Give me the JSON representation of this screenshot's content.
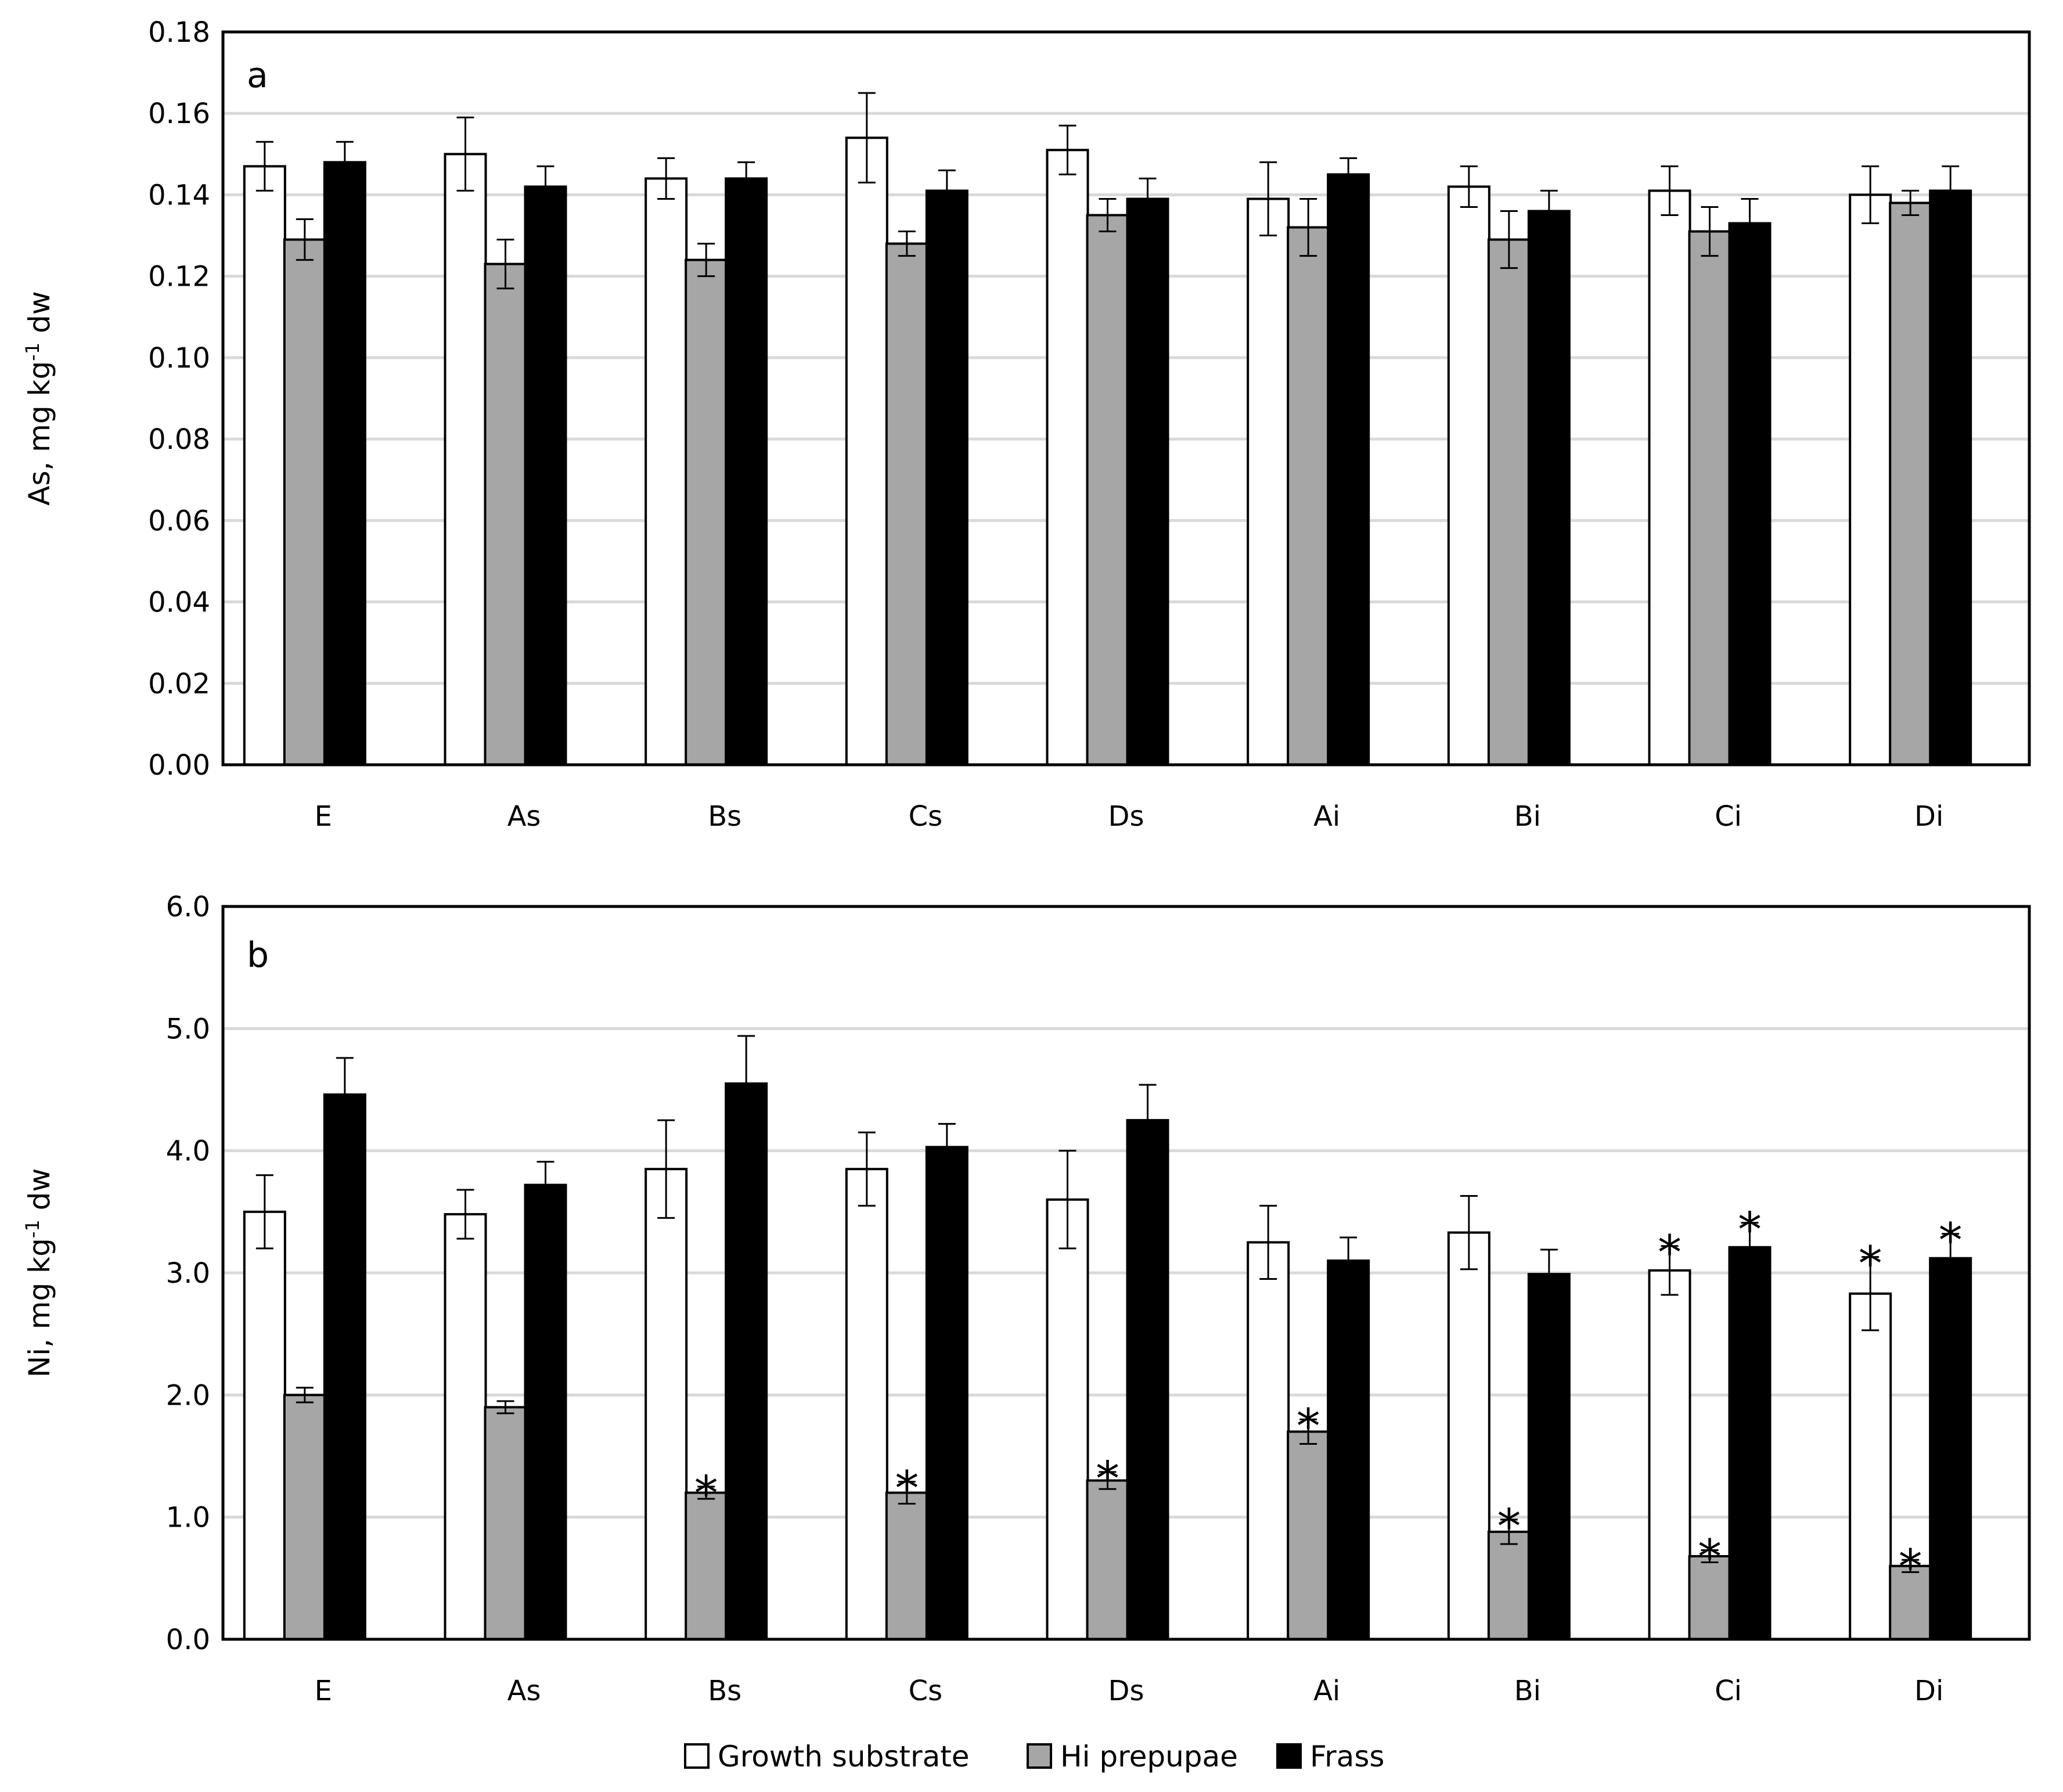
{
  "chart_data": [
    {
      "type": "bar",
      "panel_label": "a",
      "ylabel_main": "As, mg kg",
      "ylabel_sup": "-1",
      "ylabel_tail": " dw",
      "ylim": [
        0,
        0.18
      ],
      "yticks": [
        "0.00",
        "0.02",
        "0.04",
        "0.06",
        "0.08",
        "0.10",
        "0.12",
        "0.14",
        "0.16",
        "0.18"
      ],
      "grid": true,
      "categories": [
        "E",
        "As",
        "Bs",
        "Cs",
        "Ds",
        "Ai",
        "Bi",
        "Ci",
        "Di"
      ],
      "series": [
        {
          "name": "Growth substrate",
          "color": "#ffffff",
          "values": [
            0.147,
            0.15,
            0.144,
            0.154,
            0.151,
            0.139,
            0.142,
            0.141,
            0.14
          ],
          "errors": [
            0.006,
            0.009,
            0.005,
            0.011,
            0.006,
            0.009,
            0.005,
            0.006,
            0.007
          ],
          "stars": [
            false,
            false,
            false,
            false,
            false,
            false,
            false,
            false,
            false
          ]
        },
        {
          "name": "Hi prepupae",
          "color": "#a6a6a6",
          "values": [
            0.129,
            0.123,
            0.124,
            0.128,
            0.135,
            0.132,
            0.129,
            0.131,
            0.138
          ],
          "errors": [
            0.005,
            0.006,
            0.004,
            0.003,
            0.004,
            0.007,
            0.007,
            0.006,
            0.003
          ],
          "stars": [
            false,
            false,
            false,
            false,
            false,
            false,
            false,
            false,
            false
          ]
        },
        {
          "name": "Frass",
          "color": "#000000",
          "values": [
            0.148,
            0.142,
            0.144,
            0.141,
            0.139,
            0.145,
            0.136,
            0.133,
            0.141
          ],
          "errors": [
            0.005,
            0.005,
            0.004,
            0.005,
            0.005,
            0.004,
            0.005,
            0.006,
            0.006
          ],
          "stars": [
            false,
            false,
            false,
            false,
            false,
            false,
            false,
            false,
            false
          ]
        }
      ]
    },
    {
      "type": "bar",
      "panel_label": "b",
      "ylabel_main": "Ni, mg kg",
      "ylabel_sup": "-1",
      "ylabel_tail": " dw",
      "ylim": [
        0,
        6.0
      ],
      "yticks": [
        "0.0",
        "1.0",
        "2.0",
        "3.0",
        "4.0",
        "5.0",
        "6.0"
      ],
      "grid": true,
      "categories": [
        "E",
        "As",
        "Bs",
        "Cs",
        "Ds",
        "Ai",
        "Bi",
        "Ci",
        "Di"
      ],
      "series": [
        {
          "name": "Growth substrate",
          "color": "#ffffff",
          "values": [
            3.5,
            3.48,
            3.85,
            3.85,
            3.6,
            3.25,
            3.33,
            3.02,
            2.83
          ],
          "errors": [
            0.3,
            0.2,
            0.4,
            0.3,
            0.4,
            0.3,
            0.3,
            0.2,
            0.3
          ],
          "stars": [
            false,
            false,
            false,
            false,
            false,
            false,
            false,
            true,
            true
          ]
        },
        {
          "name": "Hi prepupae",
          "color": "#a6a6a6",
          "values": [
            2.0,
            1.9,
            1.2,
            1.2,
            1.3,
            1.7,
            0.88,
            0.68,
            0.6
          ],
          "errors": [
            0.06,
            0.05,
            0.05,
            0.09,
            0.07,
            0.1,
            0.1,
            0.05,
            0.05
          ],
          "stars": [
            false,
            false,
            true,
            true,
            true,
            true,
            true,
            true,
            true
          ]
        },
        {
          "name": "Frass",
          "color": "#000000",
          "values": [
            4.46,
            3.72,
            4.55,
            4.03,
            4.25,
            3.1,
            2.99,
            3.21,
            3.12
          ],
          "errors": [
            0.3,
            0.19,
            0.39,
            0.19,
            0.29,
            0.19,
            0.2,
            0.2,
            0.2
          ],
          "stars": [
            false,
            false,
            false,
            false,
            false,
            false,
            false,
            true,
            true
          ]
        }
      ]
    }
  ],
  "legend": {
    "placement": "bottom-center",
    "items": [
      {
        "label": "Growth substrate",
        "color": "#ffffff"
      },
      {
        "label": "Hi prepupae",
        "color": "#a6a6a6"
      },
      {
        "label": "Frass",
        "color": "#000000"
      }
    ]
  },
  "significance_marker": "*"
}
